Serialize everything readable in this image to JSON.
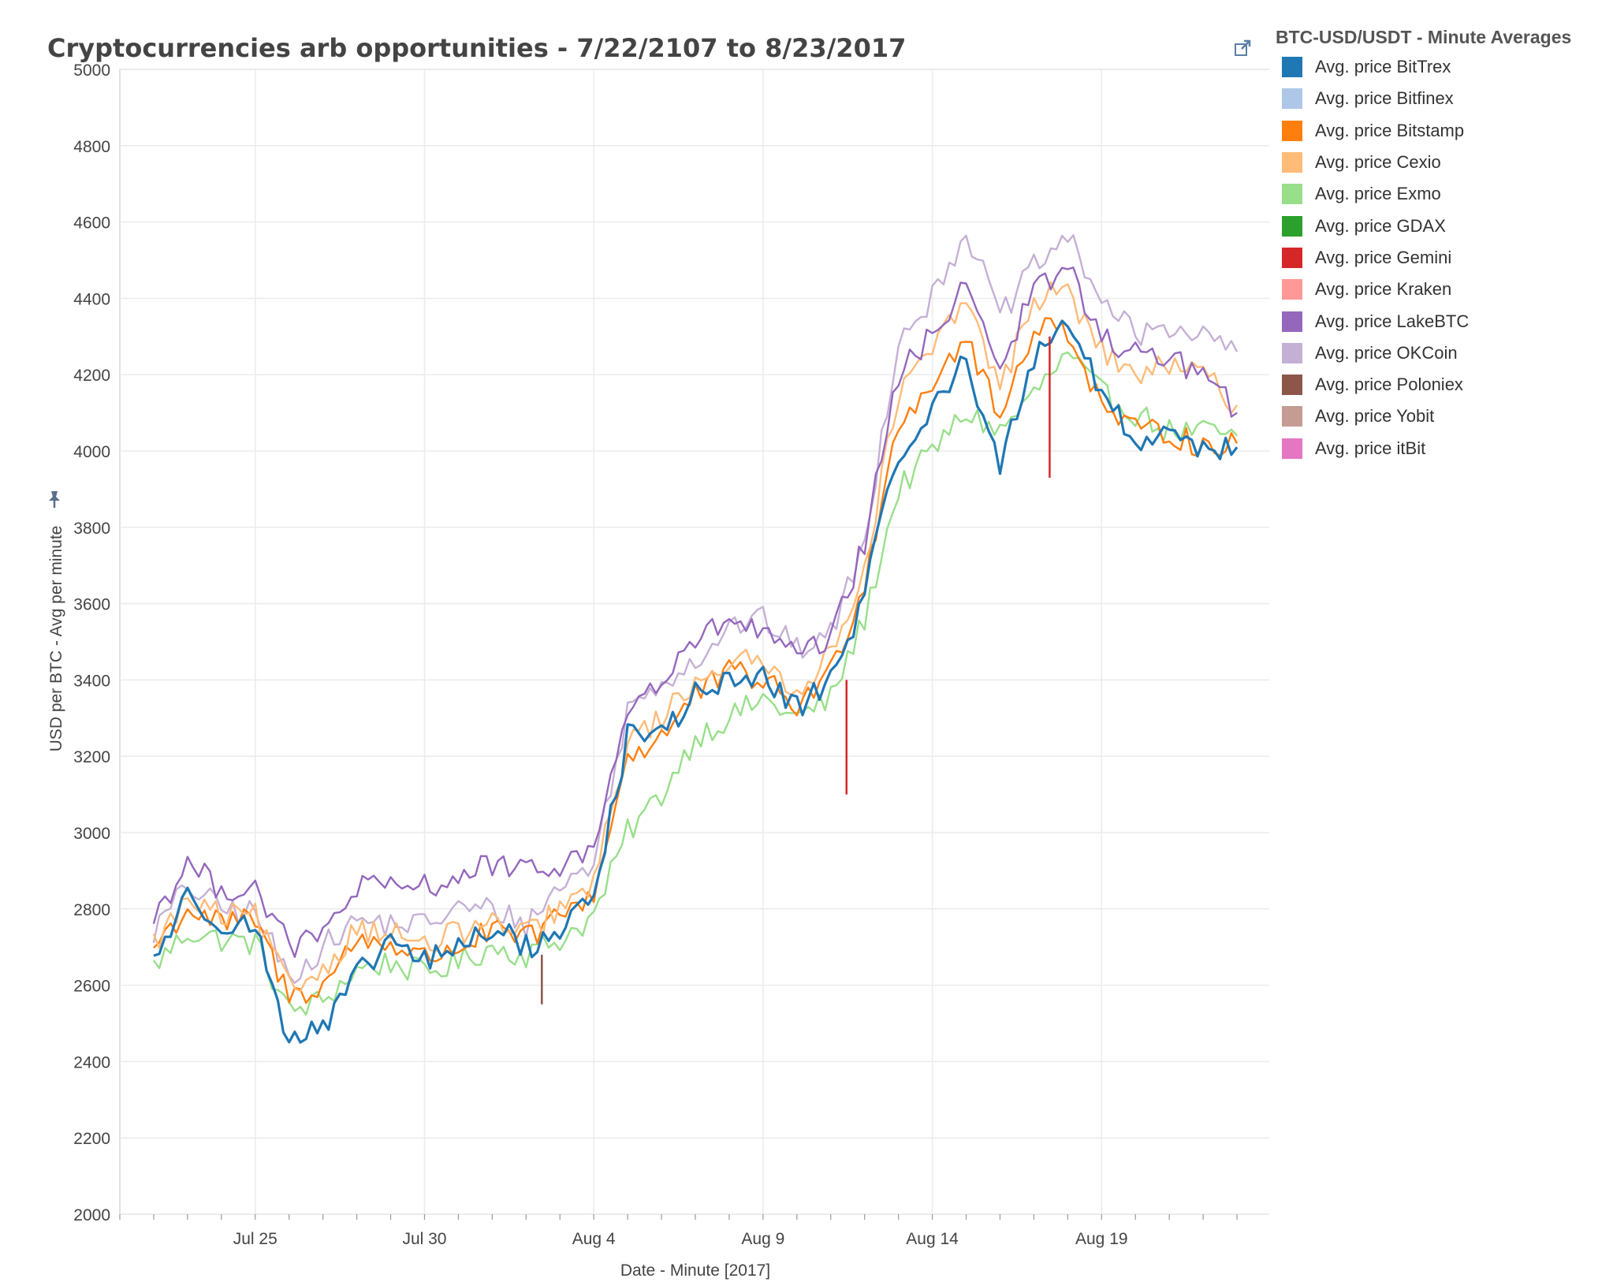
{
  "title": "Cryptocurrencies arb opportunities - 7/22/2107 to 8/23/2017",
  "share_icon": "external-link-icon",
  "pin_icon": "pin-icon",
  "legend": {
    "title": "BTC-USD/USDT - Minute Averages",
    "items": [
      {
        "label": "Avg. price BitTrex",
        "color": "#1f77b4"
      },
      {
        "label": "Avg. price Bitfinex",
        "color": "#aec7e8"
      },
      {
        "label": "Avg. price Bitstamp",
        "color": "#ff7f0e"
      },
      {
        "label": "Avg. price Cexio",
        "color": "#ffbb78"
      },
      {
        "label": "Avg. price Exmo",
        "color": "#98df8a"
      },
      {
        "label": "Avg. price GDAX",
        "color": "#2ca02c"
      },
      {
        "label": "Avg. price Gemini",
        "color": "#d62728"
      },
      {
        "label": "Avg. price Kraken",
        "color": "#ff9896"
      },
      {
        "label": "Avg. price LakeBTC",
        "color": "#9467bd"
      },
      {
        "label": "Avg. price OKCoin",
        "color": "#c5b0d5"
      },
      {
        "label": "Avg. price Poloniex",
        "color": "#8c564b"
      },
      {
        "label": "Avg. price Yobit",
        "color": "#c49c94"
      },
      {
        "label": "Avg. price itBit",
        "color": "#e377c2"
      }
    ]
  },
  "chart_data": {
    "type": "line",
    "title": "Cryptocurrencies arb opportunities - 7/22/2107 to 8/23/2017",
    "xlabel": "Date - Minute [2017]",
    "ylabel": "USD per BTC - Avg per minute",
    "ylim": [
      2000,
      5000
    ],
    "yticks": [
      2000,
      2200,
      2400,
      2600,
      2800,
      3000,
      3200,
      3400,
      3600,
      3800,
      4000,
      4200,
      4400,
      4600,
      4800,
      5000
    ],
    "xlim": [
      "2017-07-21",
      "2017-08-24"
    ],
    "xticks": [
      {
        "date": "2017-07-25",
        "label": "Jul 25"
      },
      {
        "date": "2017-07-30",
        "label": "Jul 30"
      },
      {
        "date": "2017-08-04",
        "label": "Aug 4"
      },
      {
        "date": "2017-08-09",
        "label": "Aug 9"
      },
      {
        "date": "2017-08-14",
        "label": "Aug 14"
      },
      {
        "date": "2017-08-19",
        "label": "Aug 19"
      }
    ],
    "grid": true,
    "legend_position": "right",
    "x_dates": [
      "2017-07-22",
      "2017-07-23",
      "2017-07-24",
      "2017-07-25",
      "2017-07-26",
      "2017-07-27",
      "2017-07-28",
      "2017-07-29",
      "2017-07-30",
      "2017-07-31",
      "2017-08-01",
      "2017-08-02",
      "2017-08-03",
      "2017-08-04",
      "2017-08-05",
      "2017-08-06",
      "2017-08-07",
      "2017-08-08",
      "2017-08-09",
      "2017-08-10",
      "2017-08-11",
      "2017-08-12",
      "2017-08-13",
      "2017-08-14",
      "2017-08-15",
      "2017-08-16",
      "2017-08-17",
      "2017-08-18",
      "2017-08-19",
      "2017-08-20",
      "2017-08-21",
      "2017-08-22",
      "2017-08-23"
    ],
    "series": [
      {
        "name": "Avg. price Exmo",
        "color": "#98df8a",
        "values": [
          2650,
          2740,
          2720,
          2710,
          2530,
          2560,
          2640,
          2660,
          2630,
          2660,
          2700,
          2680,
          2720,
          2780,
          3000,
          3100,
          3250,
          3300,
          3350,
          3300,
          3350,
          3560,
          3900,
          4000,
          4100,
          4050,
          4150,
          4250,
          4150,
          4100,
          4050,
          4050,
          4040
        ]
      },
      {
        "name": "Avg. price OKCoin",
        "color": "#c5b0d5",
        "values": [
          2740,
          2860,
          2800,
          2790,
          2620,
          2700,
          2770,
          2760,
          2760,
          2800,
          2800,
          2760,
          2860,
          2920,
          3320,
          3400,
          3450,
          3540,
          3560,
          3480,
          3520,
          3760,
          4300,
          4400,
          4580,
          4350,
          4480,
          4560,
          4400,
          4300,
          4330,
          4300,
          4260
        ]
      },
      {
        "name": "Avg. price Bitstamp",
        "color": "#ff7f0e",
        "values": [
          2700,
          2800,
          2760,
          2770,
          2570,
          2600,
          2720,
          2710,
          2670,
          2700,
          2740,
          2720,
          2780,
          2840,
          3200,
          3250,
          3360,
          3420,
          3400,
          3330,
          3420,
          3660,
          4080,
          4180,
          4300,
          4080,
          4330,
          4320,
          4120,
          4050,
          4050,
          4010,
          4020
        ]
      },
      {
        "name": "Avg. price Cexio",
        "color": "#ffbb78",
        "values": [
          2710,
          2820,
          2780,
          2780,
          2590,
          2640,
          2750,
          2740,
          2700,
          2740,
          2760,
          2730,
          2800,
          2860,
          3240,
          3300,
          3400,
          3450,
          3440,
          3380,
          3460,
          3700,
          4150,
          4260,
          4400,
          4160,
          4400,
          4420,
          4260,
          4200,
          4220,
          4200,
          4120
        ]
      },
      {
        "name": "Avg. price LakeBTC",
        "color": "#9467bd",
        "values": [
          2780,
          2920,
          2850,
          2860,
          2700,
          2730,
          2860,
          2850,
          2860,
          2880,
          2920,
          2890,
          2920,
          2950,
          3330,
          3390,
          3500,
          3560,
          3520,
          3460,
          3500,
          3760,
          4200,
          4300,
          4450,
          4220,
          4420,
          4480,
          4300,
          4250,
          4250,
          4200,
          4100
        ]
      },
      {
        "name": "Avg. price BitTrex",
        "color": "#1f77b4",
        "values": [
          2670,
          2830,
          2770,
          2750,
          2460,
          2480,
          2620,
          2720,
          2660,
          2700,
          2750,
          2700,
          2740,
          2840,
          3250,
          3260,
          3360,
          3400,
          3400,
          3330,
          3400,
          3620,
          4000,
          4100,
          4250,
          3950,
          4250,
          4350,
          4150,
          4020,
          4060,
          4010,
          4010
        ]
      }
    ],
    "annotations": [
      {
        "series": "Avg. price Gemini",
        "color": "#d62728",
        "date": "2017-08-11",
        "low": 3100,
        "high": 3400
      },
      {
        "series": "Avg. price Gemini",
        "color": "#d62728",
        "date": "2017-08-17",
        "low": 3930,
        "high": 4300
      },
      {
        "series": "Avg. price Poloniex",
        "color": "#8c564b",
        "date": "2017-08-02",
        "low": 2550,
        "high": 2680
      }
    ]
  }
}
